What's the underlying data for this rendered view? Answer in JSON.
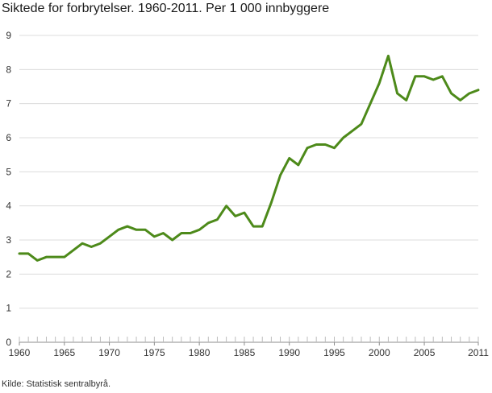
{
  "chart_data": {
    "type": "line",
    "title": "Siktede for forbrytelser. 1960-2011. Per 1 000 innbyggere",
    "xlabel": "",
    "ylabel": "",
    "ylim": [
      0,
      9
    ],
    "xlim": [
      1960,
      2011
    ],
    "yticks": [
      0,
      1,
      2,
      3,
      4,
      5,
      6,
      7,
      8,
      9
    ],
    "xticks": [
      1960,
      1965,
      1970,
      1975,
      1980,
      1985,
      1990,
      1995,
      2000,
      2005,
      2011
    ],
    "grid": true,
    "line_color": "#4d8a1a",
    "x": [
      1960,
      1961,
      1962,
      1963,
      1964,
      1965,
      1966,
      1967,
      1968,
      1969,
      1970,
      1971,
      1972,
      1973,
      1974,
      1975,
      1976,
      1977,
      1978,
      1979,
      1980,
      1981,
      1982,
      1983,
      1984,
      1985,
      1986,
      1987,
      1988,
      1989,
      1990,
      1991,
      1992,
      1993,
      1994,
      1995,
      1996,
      1997,
      1998,
      1999,
      2000,
      2001,
      2002,
      2003,
      2004,
      2005,
      2006,
      2007,
      2008,
      2009,
      2010,
      2011
    ],
    "series": [
      {
        "values": [
          2.6,
          2.6,
          2.4,
          2.5,
          2.5,
          2.5,
          2.7,
          2.9,
          2.8,
          2.9,
          3.1,
          3.3,
          3.4,
          3.3,
          3.3,
          3.1,
          3.2,
          3.0,
          3.2,
          3.2,
          3.3,
          3.5,
          3.6,
          4.0,
          3.7,
          3.8,
          3.4,
          3.4,
          4.1,
          4.9,
          5.4,
          5.2,
          5.7,
          5.8,
          5.8,
          5.7,
          6.0,
          6.2,
          6.4,
          7.0,
          7.6,
          8.4,
          7.3,
          7.1,
          7.8,
          7.8,
          7.7,
          7.8,
          7.3,
          7.1,
          7.3,
          7.4
        ]
      }
    ]
  },
  "source": "Kilde: Statistisk sentralbyrå."
}
